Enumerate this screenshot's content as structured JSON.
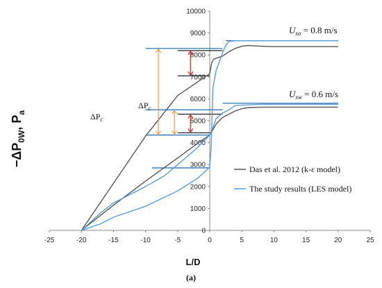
{
  "chart_data": {
    "type": "line",
    "xlabel": "L/D",
    "ylabel": "−ΔP",
    "ylabel_sub": "0W",
    "ylabel_tail": ", P",
    "ylabel_sub2": "a",
    "caption": "(a)",
    "xlim": [
      -25,
      25
    ],
    "ylim": [
      0,
      10000
    ],
    "x_ticks": [
      -25,
      -20,
      -15,
      -10,
      -5,
      0,
      5,
      10,
      15,
      20,
      25
    ],
    "y_ticks": [
      0,
      1000,
      2000,
      3000,
      4000,
      5000,
      6000,
      7000,
      8000,
      9000,
      10000
    ],
    "grid": false,
    "legend_position": "right",
    "legend": [
      {
        "label": "Das et al. 2012 (k-ε model)",
        "color": "#555555"
      },
      {
        "label": "The study results (LES model)",
        "color": "#5b9bd5"
      }
    ],
    "annotations": {
      "uso_label": "U",
      "uso_sub": "so",
      "uso_value": " = 0.8 m/s",
      "usw_label": "U",
      "usw_sub": "sw",
      "usw_value": " = 0.6 m/s",
      "dp_left": "ΔP",
      "dp_left_sub": "c",
      "dp_mid": "ΔP",
      "dp_mid_sub": "c"
    },
    "series": [
      {
        "name": "Das et al. 2012 (k-ε model)",
        "case": "Uso = 0.8 m/s",
        "color": "#555555",
        "x": [
          -20,
          -15,
          -10,
          -5,
          -1,
          0,
          0.3,
          0.6,
          1,
          2,
          3,
          4,
          5,
          6,
          8,
          10,
          15,
          20
        ],
        "y": [
          0,
          2150,
          4300,
          6150,
          6950,
          7150,
          7650,
          7800,
          7850,
          7950,
          8150,
          8300,
          8400,
          8430,
          8400,
          8380,
          8380,
          8380
        ]
      },
      {
        "name": "The study results (LES model)",
        "case": "Uso = 0.8 m/s",
        "color": "#5b9bd5",
        "x": [
          -20,
          -17,
          -15,
          -10,
          -5,
          -2,
          -0.5,
          0,
          0.2,
          0.5,
          1,
          1.5,
          2,
          2.5,
          3,
          4,
          8,
          12,
          20
        ],
        "y": [
          0,
          300,
          600,
          1100,
          1800,
          2350,
          2750,
          2900,
          3700,
          6500,
          7300,
          7700,
          8100,
          8450,
          8620,
          8650,
          8650,
          8650,
          8650
        ]
      },
      {
        "name": "Das et al. 2012 (k-ε model)",
        "case": "Usw = 0.6 m/s",
        "color": "#555555",
        "x": [
          -20,
          -15,
          -10,
          -5,
          -2,
          -0.5,
          0,
          0.5,
          1,
          2,
          3,
          4,
          5,
          6,
          8,
          12,
          20
        ],
        "y": [
          0,
          1150,
          2250,
          3300,
          3950,
          4250,
          4350,
          4600,
          4850,
          5150,
          5300,
          5450,
          5550,
          5600,
          5620,
          5620,
          5620
        ]
      },
      {
        "name": "The study results (LES model)",
        "case": "Usw = 0.6 m/s",
        "color": "#5b9bd5",
        "x": [
          -20,
          -17,
          -15,
          -13,
          -10,
          -7,
          -5,
          -2,
          0,
          0.5,
          1,
          2,
          3,
          4,
          8,
          12,
          20
        ],
        "y": [
          0,
          800,
          1250,
          1550,
          2000,
          2500,
          3000,
          3750,
          4350,
          4700,
          5100,
          5350,
          5500,
          5700,
          5750,
          5750,
          5750
        ]
      }
    ],
    "reference_lines": [
      {
        "color": "#2e75b6",
        "y": 8300,
        "x": [
          -10,
          2
        ]
      },
      {
        "color": "#222222",
        "y": 8200,
        "x": [
          -5,
          2
        ]
      },
      {
        "color": "#2e75b6",
        "y": 8650,
        "x": [
          2.5,
          20
        ]
      },
      {
        "color": "#222222",
        "y": 7050,
        "x": [
          -5,
          0
        ]
      },
      {
        "color": "#2e75b6",
        "y": 5500,
        "x": [
          -10,
          2
        ]
      },
      {
        "color": "#222222",
        "y": 5300,
        "x": [
          -5,
          2
        ]
      },
      {
        "color": "#2e75b6",
        "y": 5800,
        "x": [
          2,
          20
        ]
      },
      {
        "color": "#222222",
        "y": 4450,
        "x": [
          -5,
          0
        ]
      },
      {
        "color": "#2e75b6",
        "y": 4350,
        "x": [
          -10,
          0
        ]
      },
      {
        "color": "#2e75b6",
        "y": 2850,
        "x": [
          -9,
          0
        ]
      }
    ],
    "arrows": [
      {
        "color": "#f4a24a",
        "x": -8,
        "y1": 4350,
        "y2": 8300
      },
      {
        "color": "#f4a24a",
        "x": -5.5,
        "y1": 4350,
        "y2": 5500
      },
      {
        "color": "#c0392b",
        "x": -3,
        "y1": 7050,
        "y2": 8200
      },
      {
        "color": "#c0392b",
        "x": -3,
        "y1": 4450,
        "y2": 5300
      }
    ]
  }
}
